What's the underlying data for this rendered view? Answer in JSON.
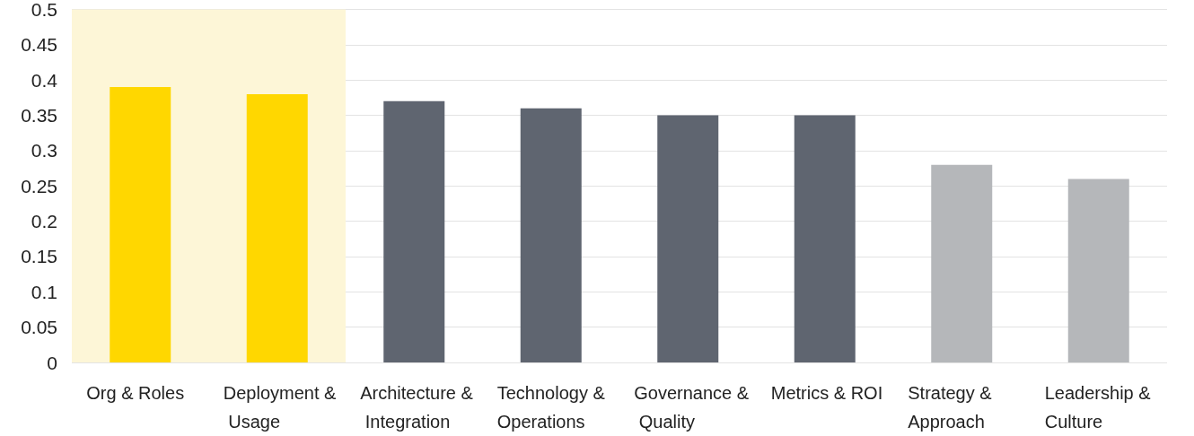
{
  "chart_data": {
    "type": "bar",
    "categories": [
      "Org & Roles",
      "Deployment & Usage",
      "Architecture & Integration",
      "Technology & Operations",
      "Governance & Quality",
      "Metrics & ROI",
      "Strategy & Approach",
      "Leadership & Culture"
    ],
    "values": [
      0.39,
      0.38,
      0.37,
      0.36,
      0.35,
      0.35,
      0.28,
      0.26
    ],
    "colors": [
      "#ffd700",
      "#ffd700",
      "#5f6570",
      "#5f6570",
      "#5f6570",
      "#5f6570",
      "#b5b7ba",
      "#b5b7ba"
    ],
    "ylim": [
      0,
      0.5
    ],
    "yticks": [
      0,
      0.05,
      0.1,
      0.15,
      0.2,
      0.25,
      0.3,
      0.35,
      0.4,
      0.45,
      0.5
    ],
    "grid": "y",
    "bands": [
      {
        "axis": "x",
        "from": "Org & Roles",
        "to": "Deployment & Usage",
        "color": "#fdf6d7"
      }
    ]
  }
}
